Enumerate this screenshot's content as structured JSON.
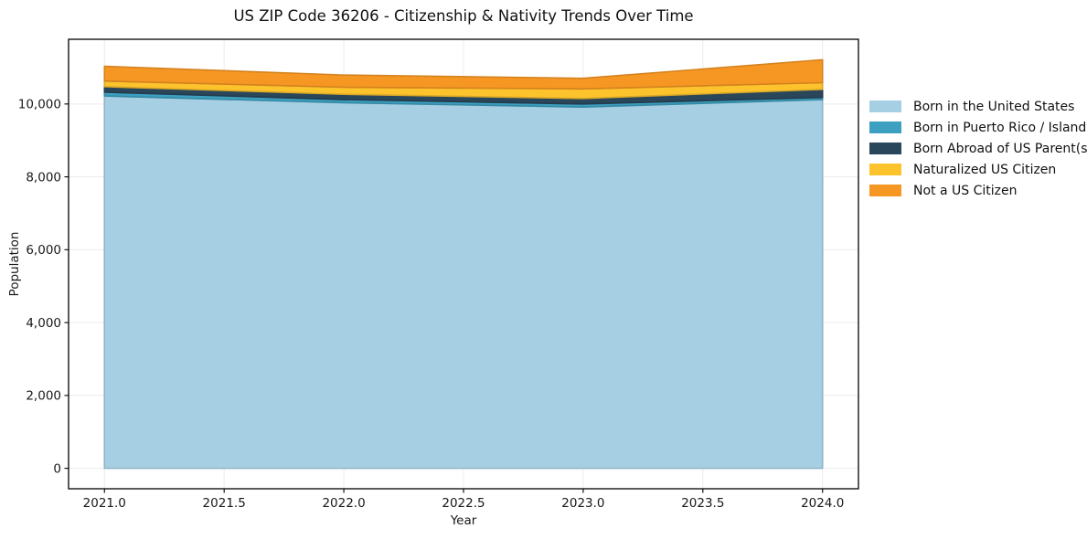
{
  "chart_data": {
    "type": "area",
    "stacked": true,
    "title": "US ZIP Code 36206 - Citizenship & Nativity Trends Over Time",
    "xlabel": "Year",
    "ylabel": "Population",
    "x": [
      2021,
      2022,
      2023,
      2024
    ],
    "series": [
      {
        "name": "Born in the United States",
        "color": "#a7cfe4",
        "values": [
          10220,
          10035,
          9915,
          10120
        ]
      },
      {
        "name": "Born in Puerto Rico / Islands",
        "color": "#3da0c0",
        "values": [
          105,
          85,
          85,
          60
        ]
      },
      {
        "name": "Born Abroad of US Parent(s)",
        "color": "#29465a",
        "values": [
          150,
          145,
          150,
          220
        ]
      },
      {
        "name": "Naturalized US Citizen",
        "color": "#fcc32d",
        "values": [
          155,
          195,
          265,
          185
        ]
      },
      {
        "name": "Not a US Citizen",
        "color": "#f79723",
        "values": [
          405,
          335,
          290,
          630
        ]
      }
    ],
    "x_ticks": [
      "2021.0",
      "2021.5",
      "2022.0",
      "2022.5",
      "2023.0",
      "2023.5",
      "2024.0"
    ],
    "x_tick_values": [
      2021,
      2021.5,
      2022,
      2022.5,
      2023,
      2023.5,
      2024
    ],
    "y_ticks": [
      "0",
      "2,000",
      "4,000",
      "6,000",
      "8,000",
      "10,000"
    ],
    "y_tick_values": [
      0,
      2000,
      4000,
      6000,
      8000,
      10000
    ],
    "xlim": [
      2020.85,
      2024.15
    ],
    "ylim": [
      -561,
      11776
    ],
    "grid": true,
    "legend_position": "right of plot, top"
  },
  "colors": {
    "background": "#ffffff",
    "spine": "#000000",
    "grid": "#ececec",
    "tick_text": "#191919"
  }
}
